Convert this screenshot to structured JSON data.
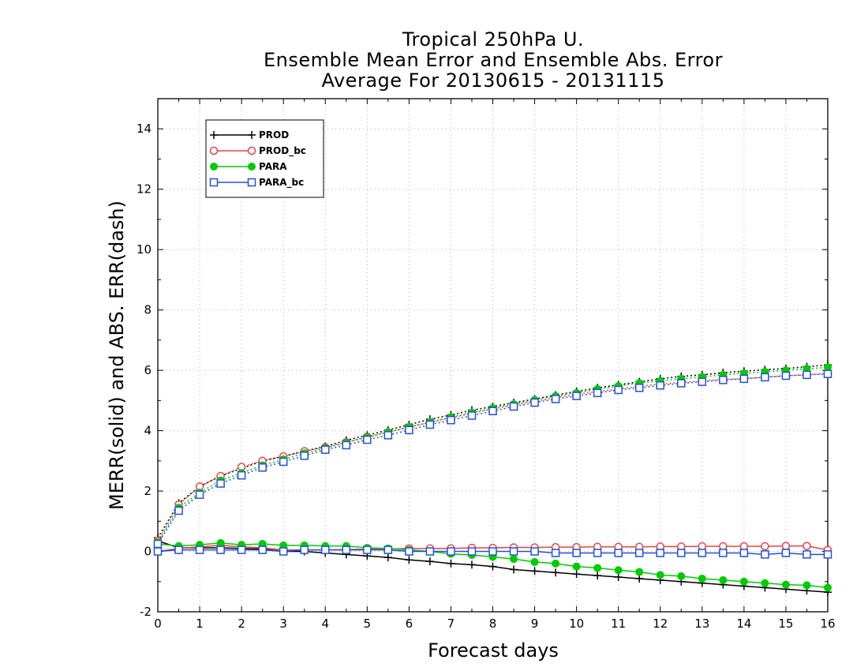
{
  "chart_data": {
    "type": "line",
    "title": [
      "Tropical 250hPa U.",
      "Ensemble Mean Error and Ensemble Abs. Error",
      "Average For 20130615 - 20131115"
    ],
    "xlabel": "Forecast days",
    "ylabel": "MERR(solid) and ABS. ERR(dash)",
    "xlim": [
      0,
      16
    ],
    "ylim": [
      -2,
      15
    ],
    "xticks": [
      0,
      1,
      2,
      3,
      4,
      5,
      6,
      7,
      8,
      9,
      10,
      11,
      12,
      13,
      14,
      15,
      16
    ],
    "yticks": [
      -2,
      0,
      2,
      4,
      6,
      8,
      10,
      12,
      14
    ],
    "grid": true,
    "legend_position": "top-left",
    "x": [
      0,
      0.5,
      1,
      1.5,
      2,
      2.5,
      3,
      3.5,
      4,
      4.5,
      5,
      5.5,
      6,
      6.5,
      7,
      7.5,
      8,
      8.5,
      9,
      9.5,
      10,
      10.5,
      11,
      11.5,
      12,
      12.5,
      13,
      13.5,
      14,
      14.5,
      15,
      15.5,
      16
    ],
    "series": [
      {
        "name": "PROD",
        "marker": "plus",
        "color": "#000000",
        "merr": [
          0.35,
          0.12,
          0.12,
          0.12,
          0.1,
          0.08,
          0.0,
          0.0,
          -0.05,
          -0.1,
          -0.15,
          -0.2,
          -0.28,
          -0.33,
          -0.4,
          -0.44,
          -0.5,
          -0.6,
          -0.65,
          -0.7,
          -0.75,
          -0.8,
          -0.85,
          -0.9,
          -0.95,
          -1.0,
          -1.05,
          -1.1,
          -1.15,
          -1.2,
          -1.25,
          -1.3,
          -1.35
        ],
        "abs_err": [
          0.45,
          1.6,
          2.15,
          2.5,
          2.75,
          3.0,
          3.15,
          3.32,
          3.48,
          3.68,
          3.85,
          4.02,
          4.2,
          4.38,
          4.52,
          4.68,
          4.8,
          4.93,
          5.05,
          5.18,
          5.3,
          5.42,
          5.52,
          5.62,
          5.72,
          5.8,
          5.85,
          5.92,
          5.97,
          6.02,
          6.06,
          6.12,
          6.18
        ]
      },
      {
        "name": "PROD_bc",
        "marker": "circle",
        "color": "#f04040",
        "merr": [
          0.0,
          0.1,
          0.15,
          0.2,
          0.15,
          0.12,
          0.05,
          0.05,
          0.05,
          0.06,
          0.08,
          0.08,
          0.1,
          0.1,
          0.1,
          0.12,
          0.12,
          0.13,
          0.13,
          0.14,
          0.14,
          0.15,
          0.15,
          0.15,
          0.16,
          0.16,
          0.17,
          0.17,
          0.17,
          0.17,
          0.18,
          0.18,
          0.05
        ],
        "abs_err": [
          0.35,
          1.55,
          2.15,
          2.5,
          2.8,
          3.0,
          3.15,
          3.32,
          3.45,
          3.62,
          3.8,
          3.95,
          4.12,
          4.28,
          4.42,
          4.58,
          4.72,
          4.85,
          4.98,
          5.1,
          5.2,
          5.3,
          5.38,
          5.47,
          5.55,
          5.6,
          5.65,
          5.7,
          5.72,
          5.78,
          5.82,
          5.85,
          5.9
        ]
      },
      {
        "name": "PARA",
        "marker": "filled-circle",
        "color": "#00cc00",
        "merr": [
          0.25,
          0.18,
          0.22,
          0.28,
          0.22,
          0.25,
          0.2,
          0.2,
          0.18,
          0.18,
          0.12,
          0.1,
          0.05,
          0.0,
          -0.08,
          -0.12,
          -0.18,
          -0.25,
          -0.35,
          -0.4,
          -0.5,
          -0.55,
          -0.62,
          -0.68,
          -0.78,
          -0.82,
          -0.9,
          -0.95,
          -1.0,
          -1.05,
          -1.1,
          -1.12,
          -1.2
        ],
        "abs_err": [
          0.3,
          1.45,
          1.95,
          2.35,
          2.6,
          2.85,
          3.05,
          3.25,
          3.42,
          3.6,
          3.78,
          3.95,
          4.12,
          4.28,
          4.45,
          4.6,
          4.75,
          4.88,
          5.02,
          5.15,
          5.25,
          5.38,
          5.48,
          5.58,
          5.65,
          5.72,
          5.78,
          5.85,
          5.9,
          5.95,
          6.0,
          6.05,
          6.1
        ]
      },
      {
        "name": "PARA_bc",
        "marker": "square",
        "color": "#2050e0",
        "merr": [
          0.0,
          0.05,
          0.05,
          0.05,
          0.05,
          0.05,
          0.0,
          0.05,
          0.05,
          0.05,
          0.05,
          0.05,
          0.0,
          0.0,
          0.0,
          0.0,
          0.0,
          0.0,
          0.0,
          -0.05,
          -0.05,
          -0.05,
          -0.05,
          -0.05,
          -0.05,
          -0.05,
          -0.05,
          -0.05,
          -0.05,
          -0.1,
          -0.05,
          -0.1,
          -0.1
        ],
        "abs_err": [
          0.25,
          1.35,
          1.88,
          2.25,
          2.52,
          2.78,
          2.97,
          3.17,
          3.37,
          3.52,
          3.7,
          3.85,
          4.02,
          4.2,
          4.35,
          4.5,
          4.65,
          4.8,
          4.93,
          5.05,
          5.15,
          5.25,
          5.35,
          5.42,
          5.5,
          5.57,
          5.62,
          5.68,
          5.72,
          5.77,
          5.82,
          5.85,
          5.88
        ]
      }
    ]
  }
}
